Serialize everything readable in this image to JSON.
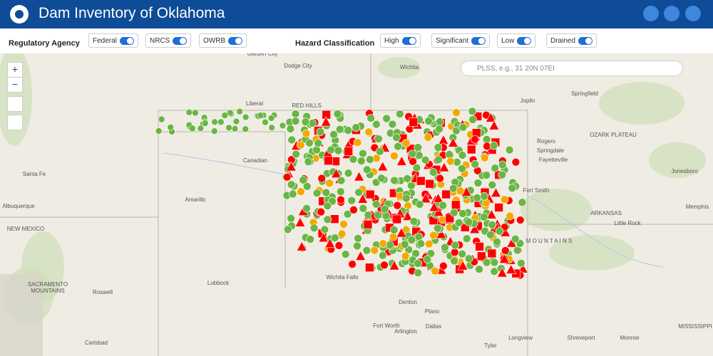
{
  "header": {
    "title": "Dam Inventory of Oklahoma"
  },
  "filters": {
    "regulatory": {
      "label": "Regulatory Agency",
      "items": [
        "Federal",
        "NRCS",
        "OWRB"
      ]
    },
    "hazard": {
      "label": "Hazard Classification",
      "items": [
        "High",
        "Significant",
        "Low",
        "Drained"
      ]
    }
  },
  "search": {
    "placeholder": "PLSS, e.g., 31 20N 07EI"
  },
  "map": {
    "zoom_in": "+",
    "zoom_out": "−",
    "labels": [
      "Garden City",
      "Dodge City",
      "Wichita",
      "Liberal",
      "RED HILLS",
      "Joplin",
      "Springfield",
      "OZARK PLATEAU",
      "Rogers",
      "Springdale",
      "Fayetteville",
      "Fort Smith",
      "Jonesboro",
      "Memphis",
      "ARKANSAS",
      "Little Rock",
      "Amarillo",
      "Canadian",
      "Albuquerque",
      "Santa Fe",
      "NEW MEXICO",
      "SACRAMENTO",
      "MOUNTAINS",
      "Roswell",
      "Lubbock",
      "Wichita Falls",
      "Denton",
      "Plano",
      "Fort Worth",
      "Arlington",
      "Dallas",
      "Longview",
      "Shreveport",
      "Monroe",
      "MISSISSIPPI",
      "Tyler",
      "Carlsbad",
      "M O U N T A I N S"
    ]
  }
}
